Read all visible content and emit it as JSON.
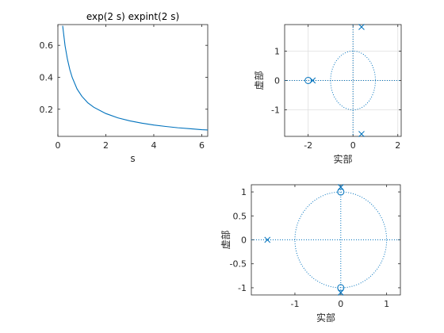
{
  "colors": {
    "series": "#0072BD",
    "axes": "#262626",
    "grid": "#dfdfdf",
    "background": "#ffffff"
  },
  "chart_data": [
    {
      "type": "line",
      "title": "exp(2 s) expint(2 s)",
      "xlabel": "s",
      "ylabel": "",
      "xlim": [
        0,
        6.25
      ],
      "ylim": [
        0.03,
        0.73
      ],
      "xticks": [
        0,
        2,
        4,
        6
      ],
      "yticks": [
        0.2,
        0.4,
        0.6
      ],
      "xtick_labels": [
        "0",
        "2",
        "4",
        "6"
      ],
      "ytick_labels": [
        "0.2",
        "0.4",
        "0.6"
      ],
      "grid": false,
      "x": [
        0.2,
        0.3,
        0.4,
        0.5,
        0.6,
        0.8,
        1.0,
        1.25,
        1.5,
        2.0,
        2.5,
        3.0,
        3.5,
        4.0,
        4.5,
        5.0,
        5.5,
        6.0,
        6.25
      ],
      "y": [
        0.722,
        0.597,
        0.512,
        0.447,
        0.398,
        0.327,
        0.281,
        0.24,
        0.212,
        0.173,
        0.146,
        0.127,
        0.113,
        0.101,
        0.092,
        0.084,
        0.078,
        0.072,
        0.07
      ]
    },
    {
      "type": "scatter",
      "title": "",
      "xlabel": "实部",
      "ylabel": "虚部",
      "xlim": [
        -3.05,
        2.15
      ],
      "ylim": [
        -1.9,
        1.9
      ],
      "xticks": [
        -2,
        0,
        2
      ],
      "yticks": [
        -1,
        0,
        1
      ],
      "xtick_labels": [
        "-2",
        "0",
        "2"
      ],
      "ytick_labels": [
        "-1",
        "0",
        "1"
      ],
      "grid": true,
      "unit_circle": true,
      "zeros": [
        [
          -2.0,
          0.0
        ]
      ],
      "poles": [
        [
          -1.8,
          0.0
        ],
        [
          0.38,
          1.82
        ],
        [
          0.38,
          -1.82
        ]
      ]
    },
    {
      "type": "scatter",
      "title": "",
      "xlabel": "实部",
      "ylabel": "虚部",
      "xlim": [
        -1.95,
        1.3
      ],
      "ylim": [
        -1.15,
        1.15
      ],
      "xticks": [
        -1,
        0,
        1
      ],
      "yticks": [
        -1,
        -0.5,
        0,
        0.5,
        1
      ],
      "xtick_labels": [
        "-1",
        "0",
        "1"
      ],
      "ytick_labels": [
        "-1",
        "-0.5",
        "0",
        "0.5",
        "1"
      ],
      "grid": false,
      "unit_circle": true,
      "zeros": [
        [
          0.0,
          1.0
        ],
        [
          0.0,
          -1.0
        ]
      ],
      "poles": [
        [
          -1.6,
          0.0
        ],
        [
          0.0,
          1.1
        ],
        [
          0.0,
          -1.1
        ]
      ]
    }
  ]
}
